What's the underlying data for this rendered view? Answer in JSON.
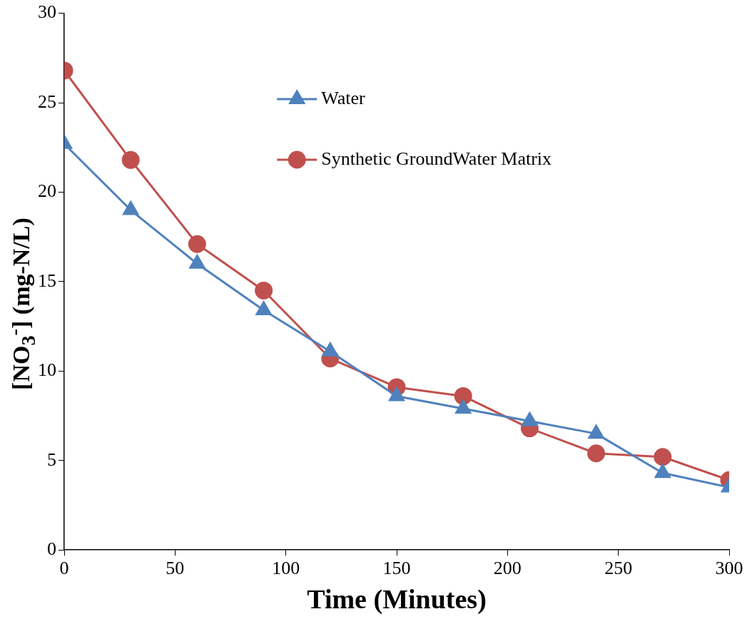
{
  "chart_data": {
    "type": "line",
    "xlabel": "Time (Minutes)",
    "ylabel": "[NO$_{3}$$^{-}$] (mg-N/L)",
    "x": [
      0,
      30,
      60,
      90,
      120,
      150,
      180,
      210,
      240,
      270,
      300
    ],
    "series": [
      {
        "name": "Water",
        "color": "#4f81bd",
        "marker": "triangle",
        "values": [
          22.7,
          19.0,
          16.0,
          13.4,
          11.1,
          8.6,
          7.9,
          7.2,
          6.5,
          4.3,
          3.5
        ]
      },
      {
        "name": "Synthetic GroundWater Matrix",
        "color": "#c0504d",
        "marker": "circle",
        "values": [
          26.8,
          21.8,
          17.1,
          14.5,
          10.7,
          9.1,
          8.6,
          6.8,
          5.4,
          5.2,
          3.9
        ]
      }
    ],
    "xlim": [
      0,
      300
    ],
    "xticks": [
      0,
      50,
      100,
      150,
      200,
      250,
      300
    ],
    "ylim": [
      0,
      30
    ],
    "yticks": [
      0,
      5,
      10,
      15,
      20,
      25,
      30
    ],
    "grid": false,
    "legend": "top",
    "line_style": "solid"
  }
}
